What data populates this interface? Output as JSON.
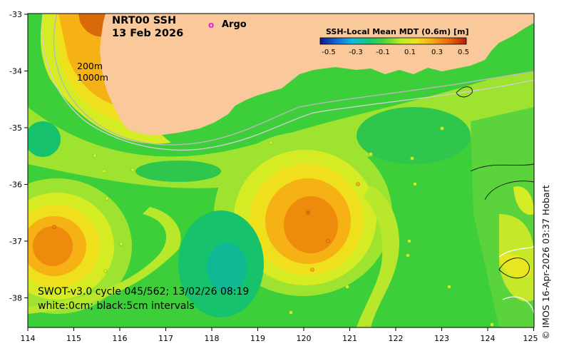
{
  "title": {
    "product": "NRT00 SSH",
    "date": "13 Feb 2026"
  },
  "legend": {
    "argo_symbol": "o",
    "argo_label": "Argo",
    "colorbar_title": "SSH-Local Mean MDT (0.6m) [m]",
    "colorbar_ticks": [
      "-0.5",
      "-0.3",
      "-0.1",
      "0.1",
      "0.3",
      "0.5"
    ],
    "colorbar_colors": [
      "#0b1a8c",
      "#1565d8",
      "#12b9e0",
      "#13c77a",
      "#4fd43c",
      "#b8ee2a",
      "#f0e020",
      "#f6a810",
      "#e8690a",
      "#b51d10"
    ]
  },
  "isobaths": {
    "shallow": "200m",
    "deep": "1000m"
  },
  "axes": {
    "lon_ticks": [
      "114",
      "115",
      "116",
      "117",
      "118",
      "119",
      "120",
      "121",
      "122",
      "123",
      "124",
      "125"
    ],
    "lat_ticks": [
      "-33",
      "-34",
      "-35",
      "-36",
      "-37",
      "-38"
    ]
  },
  "annotations": {
    "swot_pass": "SWOT-v3.0 cycle 045/562; 13/02/26 08:19",
    "contours": "white:0cm; black:5cm intervals"
  },
  "credit": "© IMOS 16-Apr-2026 03:37 Hobart",
  "colors": {
    "land": "#f9c89b",
    "sea_background": "#3ccf3a",
    "argo": "#e020e0"
  }
}
